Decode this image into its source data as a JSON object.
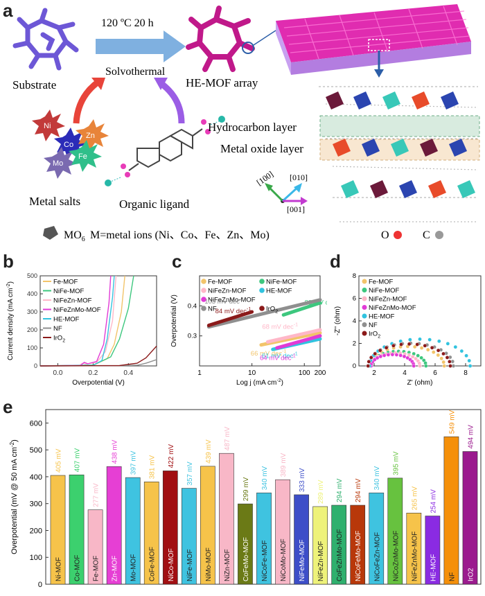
{
  "panel_a": {
    "label": "a",
    "condition": "120 ºC 20 h",
    "method": "Solvothermal",
    "substrate": "Substrate",
    "product": "HE-MOF array",
    "metal_salts": "Metal salts",
    "organic_ligand": "Organic ligand",
    "hydrocarbon_layer": "Hydrocarbon layer",
    "metal_oxide_layer": "Metal oxide layer",
    "ions": [
      "Ni",
      "Co",
      "Zn",
      "Mo",
      "Fe"
    ],
    "axis_100": "[100]",
    "axis_010": "[010]",
    "axis_001": "[001]",
    "legend_mo6": "MO",
    "legend_mo6_sub": "6",
    "legend_m": "M=metal ions (Ni、Co、Fe、Zn、Mo)",
    "legend_o": "O",
    "legend_c": "C"
  },
  "panel_b": {
    "label": "b"
  },
  "panel_c": {
    "label": "c"
  },
  "panel_d": {
    "label": "d"
  },
  "panel_e": {
    "label": "e"
  },
  "chart_data": [
    {
      "id": "b",
      "type": "line",
      "xlabel": "Overpotential (V)",
      "ylabel": "Current density (mA cm",
      "ylabel_sup": "-2",
      "ylabel_close": ")",
      "xlim": [
        -0.1,
        0.56
      ],
      "ylim": [
        0,
        500
      ],
      "xticks": [
        "0.0",
        "0.2",
        "0.4"
      ],
      "yticks": [
        "0",
        "100",
        "200",
        "300",
        "400",
        "500"
      ],
      "series": [
        {
          "name": "Fe-MOF",
          "color": "#f2c46a",
          "points": [
            [
              -0.1,
              0
            ],
            [
              0.2,
              3
            ],
            [
              0.28,
              40
            ],
            [
              0.32,
              120
            ],
            [
              0.36,
              300
            ],
            [
              0.38,
              500
            ]
          ]
        },
        {
          "name": "NiFe-MOF",
          "color": "#3dc77e",
          "points": [
            [
              -0.1,
              0
            ],
            [
              0.2,
              5
            ],
            [
              0.3,
              50
            ],
            [
              0.35,
              150
            ],
            [
              0.4,
              320
            ],
            [
              0.43,
              500
            ]
          ]
        },
        {
          "name": "NiFeZn-MOF",
          "color": "#ffb7c8",
          "points": [
            [
              -0.1,
              0
            ],
            [
              0.12,
              2
            ],
            [
              0.14,
              15
            ],
            [
              0.16,
              10
            ],
            [
              0.22,
              20
            ],
            [
              0.27,
              80
            ],
            [
              0.31,
              250
            ],
            [
              0.33,
              500
            ]
          ]
        },
        {
          "name": "NiFeZnMo-MOF",
          "color": "#e13bd6",
          "points": [
            [
              -0.1,
              0
            ],
            [
              0.13,
              3
            ],
            [
              0.15,
              20
            ],
            [
              0.17,
              12
            ],
            [
              0.22,
              25
            ],
            [
              0.26,
              120
            ],
            [
              0.29,
              350
            ],
            [
              0.3,
              500
            ]
          ]
        },
        {
          "name": "HE-MOF",
          "color": "#31c3df",
          "points": [
            [
              -0.1,
              0
            ],
            [
              0.2,
              3
            ],
            [
              0.25,
              30
            ],
            [
              0.28,
              150
            ],
            [
              0.31,
              380
            ],
            [
              0.32,
              500
            ]
          ]
        },
        {
          "name": "NF",
          "color": "#8f8f8f",
          "points": [
            [
              -0.1,
              0
            ],
            [
              0.35,
              1
            ],
            [
              0.45,
              4
            ],
            [
              0.5,
              15
            ],
            [
              0.56,
              35
            ]
          ]
        },
        {
          "name": "IrO",
          "name_sub": "2",
          "color": "#8b1a1a",
          "points": [
            [
              -0.1,
              0
            ],
            [
              0.35,
              2
            ],
            [
              0.45,
              15
            ],
            [
              0.5,
              45
            ],
            [
              0.56,
              110
            ]
          ]
        }
      ]
    },
    {
      "id": "c",
      "type": "line",
      "xlabel": "Log j (mA cm",
      "xlabel_sup": "-2",
      "xlabel_close": ")",
      "ylabel": "Overpotential (V)",
      "xscale": "log",
      "xlim": [
        1,
        200
      ],
      "ylim": [
        0.2,
        0.5
      ],
      "xticks": [
        "1",
        "10",
        "100",
        "200"
      ],
      "yticks": [
        "0.3",
        "0.4"
      ],
      "series": [
        {
          "name": "Fe-MOF",
          "color": "#f2c46a",
          "label": "66 mV dec",
          "points": [
            [
              15,
              0.27
            ],
            [
              200,
              0.31
            ]
          ]
        },
        {
          "name": "NiFe-MOF",
          "color": "#3dc77e",
          "label": "83 mV dec",
          "points": [
            [
              40,
              0.37
            ],
            [
              200,
              0.41
            ]
          ]
        },
        {
          "name": "NiFeZn-MOF",
          "color": "#ffb7c8",
          "label": "68 mV dec",
          "points": [
            [
              20,
              0.28
            ],
            [
              200,
              0.32
            ]
          ]
        },
        {
          "name": "HE-MOF",
          "color": "#31c3df",
          "label": "61 mV dec",
          "points": [
            [
              25,
              0.255
            ],
            [
              200,
              0.29
            ]
          ]
        },
        {
          "name": "NiFeZnMo-MOF",
          "color": "#e13bd6",
          "label": "64 mV dec",
          "points": [
            [
              30,
              0.26
            ],
            [
              200,
              0.3
            ]
          ]
        },
        {
          "name": "NF",
          "color": "#8f8f8f",
          "label": "103 mV dec",
          "points": [
            [
              1.5,
              0.33
            ],
            [
              200,
              0.42
            ]
          ]
        },
        {
          "name": "IrO",
          "name_sub": "2",
          "color": "#8b1a1a",
          "label": "84 mV dec",
          "points": [
            [
              1.5,
              0.335
            ],
            [
              10,
              0.38
            ]
          ]
        }
      ],
      "label_sup": "-1"
    },
    {
      "id": "d",
      "type": "scatter",
      "xlabel": "Z' (ohm)",
      "ylabel": "-Z'' (ohm)",
      "xlim": [
        1,
        9
      ],
      "ylim": [
        0,
        8
      ],
      "xticks": [
        "2",
        "4",
        "6",
        "8"
      ],
      "yticks": [
        "0",
        "2",
        "4",
        "6",
        "8"
      ],
      "series": [
        {
          "name": "Fe-MOF",
          "color": "#f2c46a",
          "rs": 1.8,
          "diam": 4.8
        },
        {
          "name": "NiFe-MOF",
          "color": "#3dc77e",
          "rs": 1.8,
          "diam": 3.6
        },
        {
          "name": "NiFeZn-MOF",
          "color": "#ffb7c8",
          "rs": 1.8,
          "diam": 3.2
        },
        {
          "name": "NiFeZnMo-MOF",
          "color": "#e13bd6",
          "rs": 1.8,
          "diam": 2.8
        },
        {
          "name": "HE-MOF",
          "color": "#31c3df",
          "rs": 1.7,
          "diam": 6.6
        },
        {
          "name": "NF",
          "color": "#8f8f8f",
          "rs": 1.6,
          "diam": 5.6
        },
        {
          "name": "IrO",
          "name_sub": "2",
          "color": "#8b1a1a",
          "rs": 1.6,
          "diam": 5.4
        }
      ]
    },
    {
      "id": "e",
      "type": "bar",
      "ylabel": "Overpotential (mV @ 50 mA cm",
      "ylabel_sup": "-2",
      "ylabel_close": ")",
      "ylim": [
        0,
        650
      ],
      "yticks": [
        "0",
        "100",
        "200",
        "300",
        "400",
        "500",
        "600"
      ],
      "bars": [
        {
          "name": "Ni-MOF",
          "value": 405,
          "label": "405 mV",
          "color": "#f6c34a"
        },
        {
          "name": "Co-MOF",
          "value": 407,
          "label": "407 mV",
          "color": "#3cd06e"
        },
        {
          "name": "Fe-MOF",
          "value": 277,
          "label": "277 mV",
          "color": "#f8b7c7"
        },
        {
          "name": "Zn-MOF",
          "value": 438,
          "label": "438 mV",
          "color": "#e63fd4"
        },
        {
          "name": "Mo-MOF",
          "value": 397,
          "label": "397 mV",
          "color": "#3fc3e0"
        },
        {
          "name": "CoFe-MOF",
          "value": 381,
          "label": "381 mV",
          "color": "#f6c34a"
        },
        {
          "name": "NiCo-MOF",
          "value": 422,
          "label": "422 mV",
          "color": "#a10f12"
        },
        {
          "name": "NiFe-MOF",
          "value": 357,
          "label": "357 mV",
          "color": "#3fc3e0"
        },
        {
          "name": "NiMo-MOF",
          "value": 439,
          "label": "439 mV",
          "color": "#f6c34a"
        },
        {
          "name": "NiZn-MOF",
          "value": 487,
          "label": "487 mV",
          "color": "#f8b7c7"
        },
        {
          "name": "CoFeMo-MOF",
          "value": 299,
          "label": "299 mV",
          "color": "#6b7a16"
        },
        {
          "name": "NiCoFe-MOF",
          "value": 340,
          "label": "340 mV",
          "color": "#3fc3e0"
        },
        {
          "name": "NiCoMo-MOF",
          "value": 389,
          "label": "389 mV",
          "color": "#f8b7c7"
        },
        {
          "name": "NiFeMo-MOF",
          "value": 333,
          "label": "333 mV",
          "color": "#3d4ec8"
        },
        {
          "name": "NiFeZn-MOF",
          "value": 289,
          "label": "289 mV",
          "color": "#eef27a"
        },
        {
          "name": "CoFeZnMo-MOF",
          "value": 294,
          "label": "294 mV",
          "color": "#2fb06e"
        },
        {
          "name": "NiCoFeMo-MOF",
          "value": 294,
          "label": "294 mV",
          "color": "#b8380a"
        },
        {
          "name": "NiCoFeZn-MOF",
          "value": 340,
          "label": "340 mV",
          "color": "#3fc3e0"
        },
        {
          "name": "NiCoZnMo-MOF",
          "value": 395,
          "label": "395 mV",
          "color": "#67c23f"
        },
        {
          "name": "NiFeZnMo-MOF",
          "value": 265,
          "label": "265 mV",
          "color": "#f6c34a"
        },
        {
          "name": "HE-MOF",
          "value": 254,
          "label": "254 mV",
          "color": "#8a2be2"
        },
        {
          "name": "NF",
          "value": 549,
          "label": "549 mV",
          "color": "#f5900a"
        },
        {
          "name": "IrO2",
          "value": 494,
          "label": "494 mV",
          "color": "#9b1a8e"
        }
      ]
    }
  ],
  "colors": {
    "accent": "#3d4ec8",
    "magenta": "#d41c97"
  }
}
